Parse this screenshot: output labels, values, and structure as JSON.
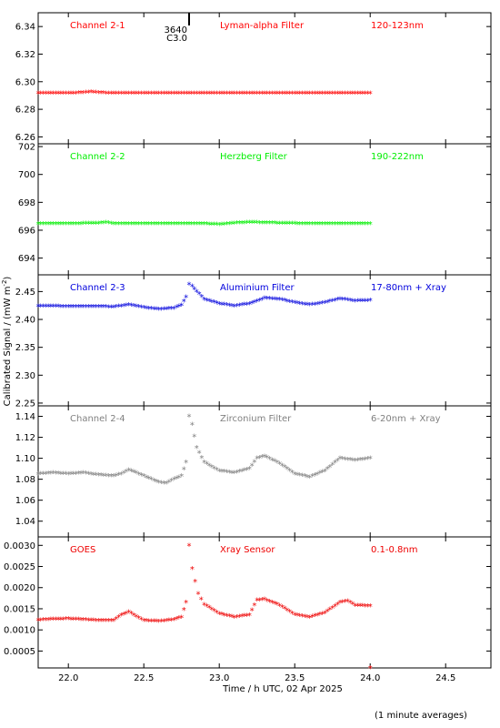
{
  "chart_data": {
    "type": "scatter",
    "layout": "5 stacked panels sharing one time axis",
    "xlabel": "Time / h UTC, 02 Apr 2025",
    "ylabel": "Calibrated Signal / (mW m",
    "ylabel_sup": "-2",
    "ylabel_end": ")",
    "xlim": [
      21.8,
      24.8
    ],
    "x_ticks": [
      22.0,
      22.5,
      23.0,
      23.5,
      24.0,
      24.5
    ],
    "x_tick_labels": [
      "22.0",
      "22.5",
      "23.0",
      "23.5",
      "24.0",
      "24.5"
    ],
    "grid": false,
    "footnote": "(1 minute averages)",
    "panels": [
      {
        "channel": "Channel 2-1",
        "filter": "Lyman-alpha Filter",
        "band": "120-123nm",
        "color": "#ff0000",
        "ylim": [
          6.255,
          6.35
        ],
        "y_ticks": [
          6.26,
          6.28,
          6.3,
          6.32,
          6.34
        ],
        "y_tick_labels": [
          "6.26",
          "6.28",
          "6.30",
          "6.32",
          "6.34"
        ],
        "marker": {
          "x": 22.8,
          "label_top": "3640",
          "label_bottom": "C3.0"
        },
        "points": [
          [
            21.8,
            6.2915
          ],
          [
            21.9,
            6.2915
          ],
          [
            22.0,
            6.2915
          ],
          [
            22.1,
            6.292
          ],
          [
            22.15,
            6.2925
          ],
          [
            22.2,
            6.292
          ],
          [
            22.3,
            6.2915
          ],
          [
            22.5,
            6.2915
          ],
          [
            22.7,
            6.2915
          ],
          [
            22.8,
            6.2915
          ],
          [
            23.0,
            6.2915
          ],
          [
            23.2,
            6.2915
          ],
          [
            23.4,
            6.2915
          ],
          [
            23.6,
            6.2915
          ],
          [
            23.8,
            6.2915
          ],
          [
            24.0,
            6.2915
          ]
        ]
      },
      {
        "channel": "Channel 2-2",
        "filter": "Herzberg Filter",
        "band": "190-222nm",
        "color": "#00ee00",
        "ylim": [
          692.8,
          702.2
        ],
        "y_ticks": [
          694,
          696,
          698,
          700,
          702
        ],
        "y_tick_labels": [
          "694",
          "696",
          "698",
          "700",
          "702"
        ],
        "points": [
          [
            21.8,
            696.45
          ],
          [
            22.0,
            696.45
          ],
          [
            22.2,
            696.5
          ],
          [
            22.25,
            696.55
          ],
          [
            22.3,
            696.45
          ],
          [
            22.5,
            696.45
          ],
          [
            22.7,
            696.45
          ],
          [
            22.9,
            696.45
          ],
          [
            23.0,
            696.4
          ],
          [
            23.1,
            696.5
          ],
          [
            23.2,
            696.55
          ],
          [
            23.4,
            696.5
          ],
          [
            23.6,
            696.45
          ],
          [
            23.8,
            696.45
          ],
          [
            24.0,
            696.45
          ]
        ]
      },
      {
        "channel": "Channel 2-3",
        "filter": "Aluminium Filter",
        "band": "17-80nm + Xray",
        "color": "#0000dd",
        "ylim": [
          2.245,
          2.48
        ],
        "y_ticks": [
          2.25,
          2.3,
          2.35,
          2.4,
          2.45
        ],
        "y_tick_labels": [
          "2.25",
          "2.30",
          "2.35",
          "2.40",
          "2.45"
        ],
        "points": [
          [
            21.8,
            2.424
          ],
          [
            22.0,
            2.423
          ],
          [
            22.2,
            2.423
          ],
          [
            22.3,
            2.422
          ],
          [
            22.4,
            2.426
          ],
          [
            22.5,
            2.421
          ],
          [
            22.6,
            2.418
          ],
          [
            22.7,
            2.42
          ],
          [
            22.75,
            2.425
          ],
          [
            22.78,
            2.44
          ],
          [
            22.8,
            2.463
          ],
          [
            22.82,
            2.46
          ],
          [
            22.85,
            2.45
          ],
          [
            22.9,
            2.436
          ],
          [
            23.0,
            2.428
          ],
          [
            23.1,
            2.424
          ],
          [
            23.2,
            2.428
          ],
          [
            23.3,
            2.438
          ],
          [
            23.4,
            2.436
          ],
          [
            23.5,
            2.43
          ],
          [
            23.6,
            2.426
          ],
          [
            23.7,
            2.43
          ],
          [
            23.8,
            2.437
          ],
          [
            23.9,
            2.433
          ],
          [
            24.0,
            2.434
          ]
        ]
      },
      {
        "channel": "Channel 2-4",
        "filter": "Zirconium Filter",
        "band": "6-20nm + Xray",
        "color": "#808080",
        "ylim": [
          1.025,
          1.15
        ],
        "y_ticks": [
          1.04,
          1.06,
          1.08,
          1.1,
          1.12,
          1.14
        ],
        "y_tick_labels": [
          "1.04",
          "1.06",
          "1.08",
          "1.10",
          "1.12",
          "1.14"
        ],
        "points": [
          [
            21.8,
            1.085
          ],
          [
            21.9,
            1.086
          ],
          [
            22.0,
            1.085
          ],
          [
            22.1,
            1.086
          ],
          [
            22.2,
            1.084
          ],
          [
            22.3,
            1.083
          ],
          [
            22.35,
            1.085
          ],
          [
            22.4,
            1.089
          ],
          [
            22.5,
            1.083
          ],
          [
            22.6,
            1.077
          ],
          [
            22.65,
            1.076
          ],
          [
            22.7,
            1.08
          ],
          [
            22.75,
            1.083
          ],
          [
            22.78,
            1.096
          ],
          [
            22.8,
            1.14
          ],
          [
            22.82,
            1.132
          ],
          [
            22.85,
            1.11
          ],
          [
            22.9,
            1.096
          ],
          [
            23.0,
            1.088
          ],
          [
            23.1,
            1.086
          ],
          [
            23.2,
            1.09
          ],
          [
            23.25,
            1.1
          ],
          [
            23.3,
            1.102
          ],
          [
            23.4,
            1.095
          ],
          [
            23.5,
            1.085
          ],
          [
            23.6,
            1.082
          ],
          [
            23.7,
            1.088
          ],
          [
            23.8,
            1.1
          ],
          [
            23.9,
            1.098
          ],
          [
            24.0,
            1.1
          ]
        ]
      },
      {
        "channel": "GOES",
        "filter": "Xray Sensor",
        "band": "0.1-0.8nm",
        "color": "#ee0000",
        "ylim": [
          0.0001,
          0.0032
        ],
        "y_ticks": [
          0.0005,
          0.001,
          0.0015,
          0.002,
          0.0025,
          0.003
        ],
        "y_tick_labels": [
          "0.0005",
          "0.0010",
          "0.0015",
          "0.0020",
          "0.0025",
          "0.0030"
        ],
        "points": [
          [
            21.8,
            0.00123
          ],
          [
            21.9,
            0.00125
          ],
          [
            22.0,
            0.00126
          ],
          [
            22.1,
            0.00124
          ],
          [
            22.2,
            0.00122
          ],
          [
            22.3,
            0.00122
          ],
          [
            22.35,
            0.00135
          ],
          [
            22.4,
            0.00142
          ],
          [
            22.5,
            0.00122
          ],
          [
            22.6,
            0.0012
          ],
          [
            22.7,
            0.00124
          ],
          [
            22.75,
            0.0013
          ],
          [
            22.78,
            0.00165
          ],
          [
            22.8,
            0.003
          ],
          [
            22.82,
            0.00245
          ],
          [
            22.84,
            0.00215
          ],
          [
            22.86,
            0.00185
          ],
          [
            22.9,
            0.0016
          ],
          [
            23.0,
            0.00138
          ],
          [
            23.1,
            0.0013
          ],
          [
            23.2,
            0.00135
          ],
          [
            23.25,
            0.0017
          ],
          [
            23.3,
            0.00172
          ],
          [
            23.4,
            0.00158
          ],
          [
            23.5,
            0.00136
          ],
          [
            23.6,
            0.0013
          ],
          [
            23.7,
            0.0014
          ],
          [
            23.8,
            0.00165
          ],
          [
            23.85,
            0.00168
          ],
          [
            23.9,
            0.00158
          ],
          [
            24.0,
            0.00156
          ],
          [
            24.0,
            0.0001
          ]
        ]
      }
    ]
  }
}
